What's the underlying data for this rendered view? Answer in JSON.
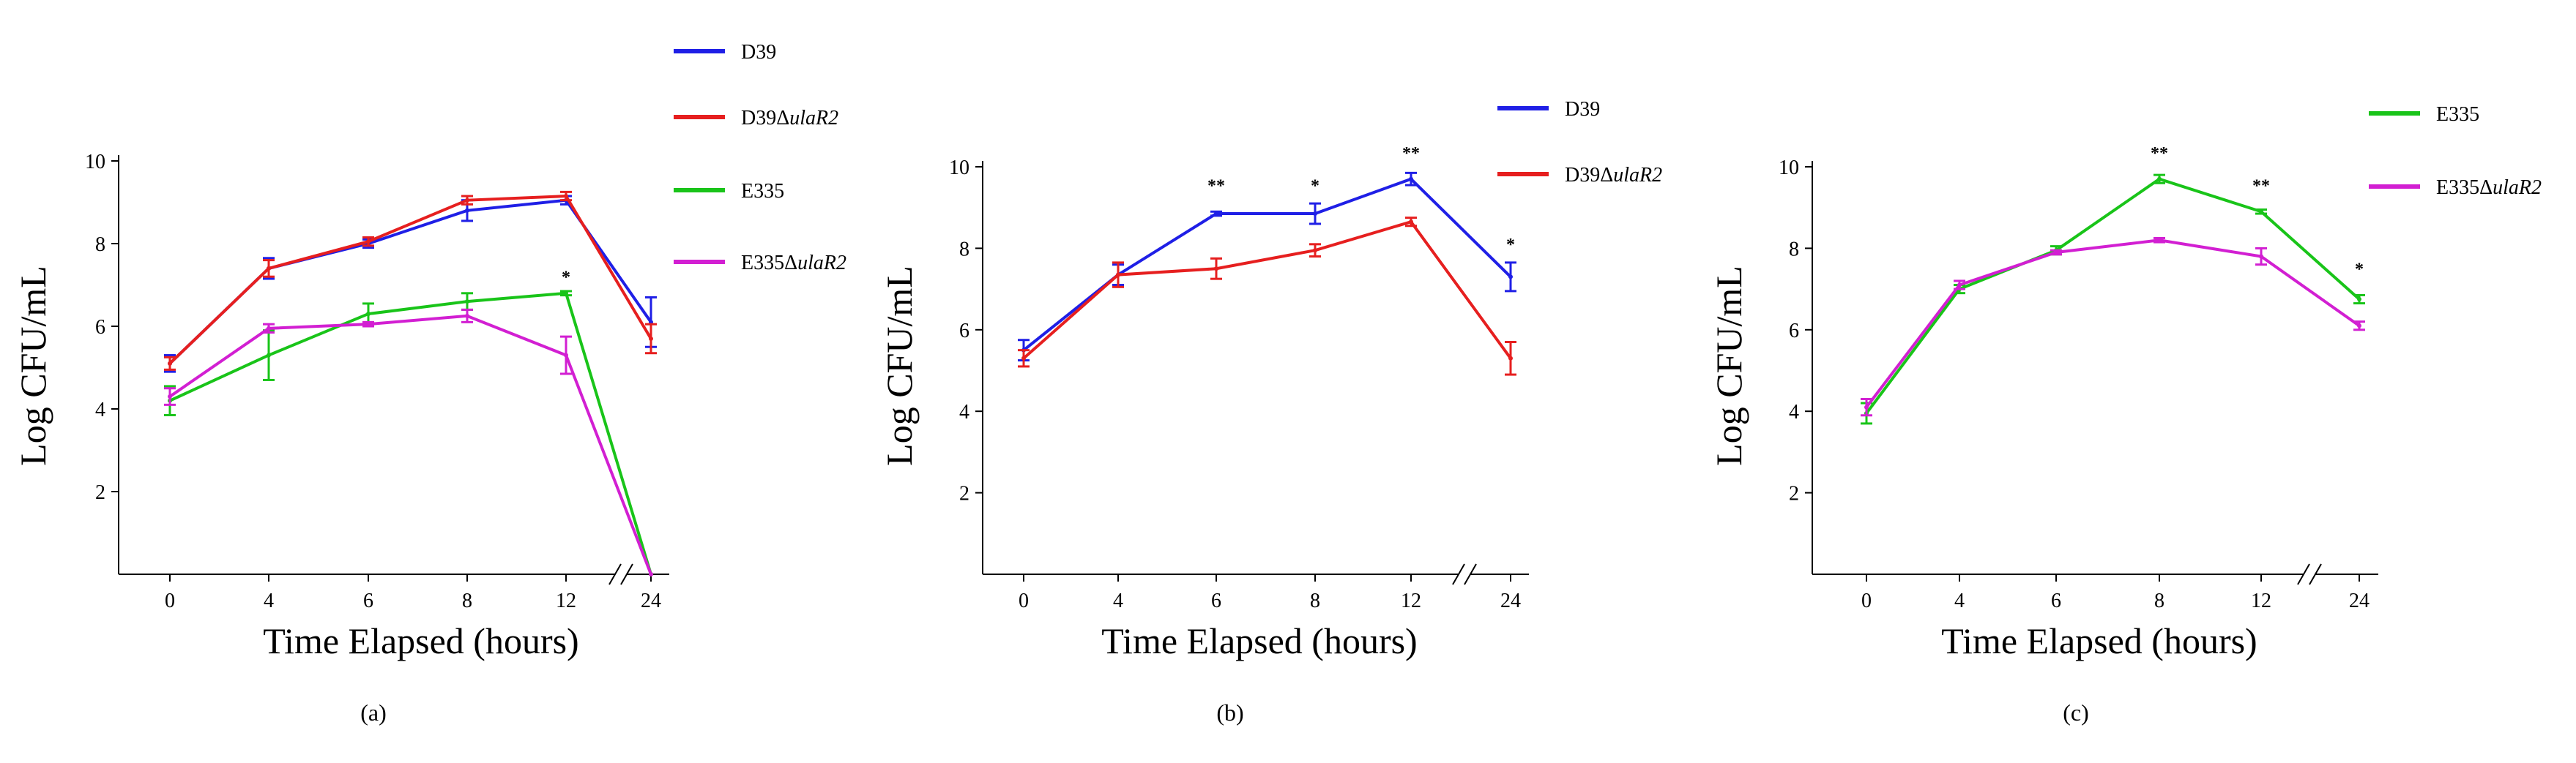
{
  "figure": {
    "panel_labels": [
      "(a)",
      "(b)",
      "(c)"
    ]
  },
  "chart_data": [
    {
      "type": "line",
      "panel": "(a)",
      "title": "",
      "xlabel": "Time Elapsed (hours)",
      "ylabel": "Log CFU/mL",
      "categories": [
        "0",
        "4",
        "6",
        "8",
        "12",
        "24"
      ],
      "axis_break_between": [
        "12",
        "24"
      ],
      "yticks": [
        "2",
        "4",
        "6",
        "8",
        "10"
      ],
      "ylim": [
        0,
        10
      ],
      "legend": {
        "placement": "top-right, outside"
      },
      "series": [
        {
          "name": "D39",
          "name_prefix": "D39",
          "name_italic": "",
          "color": "#1f1fe6",
          "values": [
            5.1,
            7.4,
            8.0,
            8.8,
            9.05,
            6.1
          ],
          "errors": [
            0.2,
            0.25,
            0.1,
            0.25,
            0.1,
            0.6
          ]
        },
        {
          "name": "D39ΔulaR2",
          "name_prefix": "D39Δ",
          "name_italic": "ulaR2",
          "color": "#e61f1f",
          "values": [
            5.1,
            7.4,
            8.05,
            9.05,
            9.15,
            5.7
          ],
          "errors": [
            0.15,
            0.2,
            0.1,
            0.1,
            0.1,
            0.35
          ]
        },
        {
          "name": "E335",
          "name_prefix": "E335",
          "name_italic": "",
          "color": "#19c419",
          "values": [
            4.2,
            5.3,
            6.3,
            6.6,
            6.8,
            0.0
          ],
          "errors": [
            0.35,
            0.6,
            0.25,
            0.2,
            0.05,
            0.0
          ]
        },
        {
          "name": "E335ΔulaR2",
          "name_prefix": "E335Δ",
          "name_italic": "ulaR2",
          "color": "#d21fd2",
          "values": [
            4.3,
            5.95,
            6.05,
            6.25,
            5.3,
            0.0
          ],
          "errors": [
            0.2,
            0.1,
            0.05,
            0.15,
            0.45,
            0.0
          ]
        }
      ],
      "annotations": [
        {
          "category": "12",
          "text": "*",
          "y": 7.05
        }
      ]
    },
    {
      "type": "line",
      "panel": "(b)",
      "title": "",
      "xlabel": "Time Elapsed (hours)",
      "ylabel": "Log CFU/mL",
      "categories": [
        "0",
        "4",
        "6",
        "8",
        "12",
        "24"
      ],
      "axis_break_between": [
        "12",
        "24"
      ],
      "yticks": [
        "2",
        "4",
        "6",
        "8",
        "10"
      ],
      "ylim": [
        0,
        10
      ],
      "legend": {
        "placement": "top-right, outside"
      },
      "series": [
        {
          "name": "D39",
          "name_prefix": "D39",
          "name_italic": "",
          "color": "#1f1fe6",
          "values": [
            5.5,
            7.35,
            8.85,
            8.85,
            9.7,
            7.3
          ],
          "errors": [
            0.25,
            0.25,
            0.05,
            0.25,
            0.15,
            0.35
          ]
        },
        {
          "name": "D39ΔulaR2",
          "name_prefix": "D39Δ",
          "name_italic": "ulaR2",
          "color": "#e61f1f",
          "values": [
            5.3,
            7.35,
            7.5,
            7.95,
            8.65,
            5.3
          ],
          "errors": [
            0.2,
            0.3,
            0.25,
            0.15,
            0.1,
            0.4
          ]
        }
      ],
      "annotations": [
        {
          "category": "6",
          "text": "**",
          "y": 9.4
        },
        {
          "category": "8",
          "text": "*",
          "y": 9.4
        },
        {
          "category": "12",
          "text": "**",
          "y": 10.2
        },
        {
          "category": "24",
          "text": "*",
          "y": 7.95
        }
      ]
    },
    {
      "type": "line",
      "panel": "(c)",
      "title": "",
      "xlabel": "Time Elapsed (hours)",
      "ylabel": "Log CFU/mL",
      "categories": [
        "0",
        "4",
        "6",
        "8",
        "12",
        "24"
      ],
      "axis_break_between": [
        "12",
        "24"
      ],
      "yticks": [
        "2",
        "4",
        "6",
        "8",
        "10"
      ],
      "ylim": [
        0,
        10
      ],
      "legend": {
        "placement": "top-right, outside"
      },
      "series": [
        {
          "name": "E335",
          "name_prefix": "E335",
          "name_italic": "",
          "color": "#19c419",
          "values": [
            3.95,
            7.0,
            7.95,
            9.7,
            8.9,
            6.75
          ],
          "errors": [
            0.25,
            0.1,
            0.1,
            0.1,
            0.05,
            0.1
          ]
        },
        {
          "name": "E335ΔulaR2",
          "name_prefix": "E335Δ",
          "name_italic": "ulaR2",
          "color": "#d21fd2",
          "values": [
            4.1,
            7.1,
            7.9,
            8.2,
            7.8,
            6.1
          ],
          "errors": [
            0.2,
            0.1,
            0.05,
            0.05,
            0.2,
            0.1
          ]
        }
      ],
      "annotations": [
        {
          "category": "8",
          "text": "**",
          "y": 10.2
        },
        {
          "category": "12",
          "text": "**",
          "y": 9.4
        },
        {
          "category": "24",
          "text": "*",
          "y": 7.35
        }
      ]
    }
  ]
}
